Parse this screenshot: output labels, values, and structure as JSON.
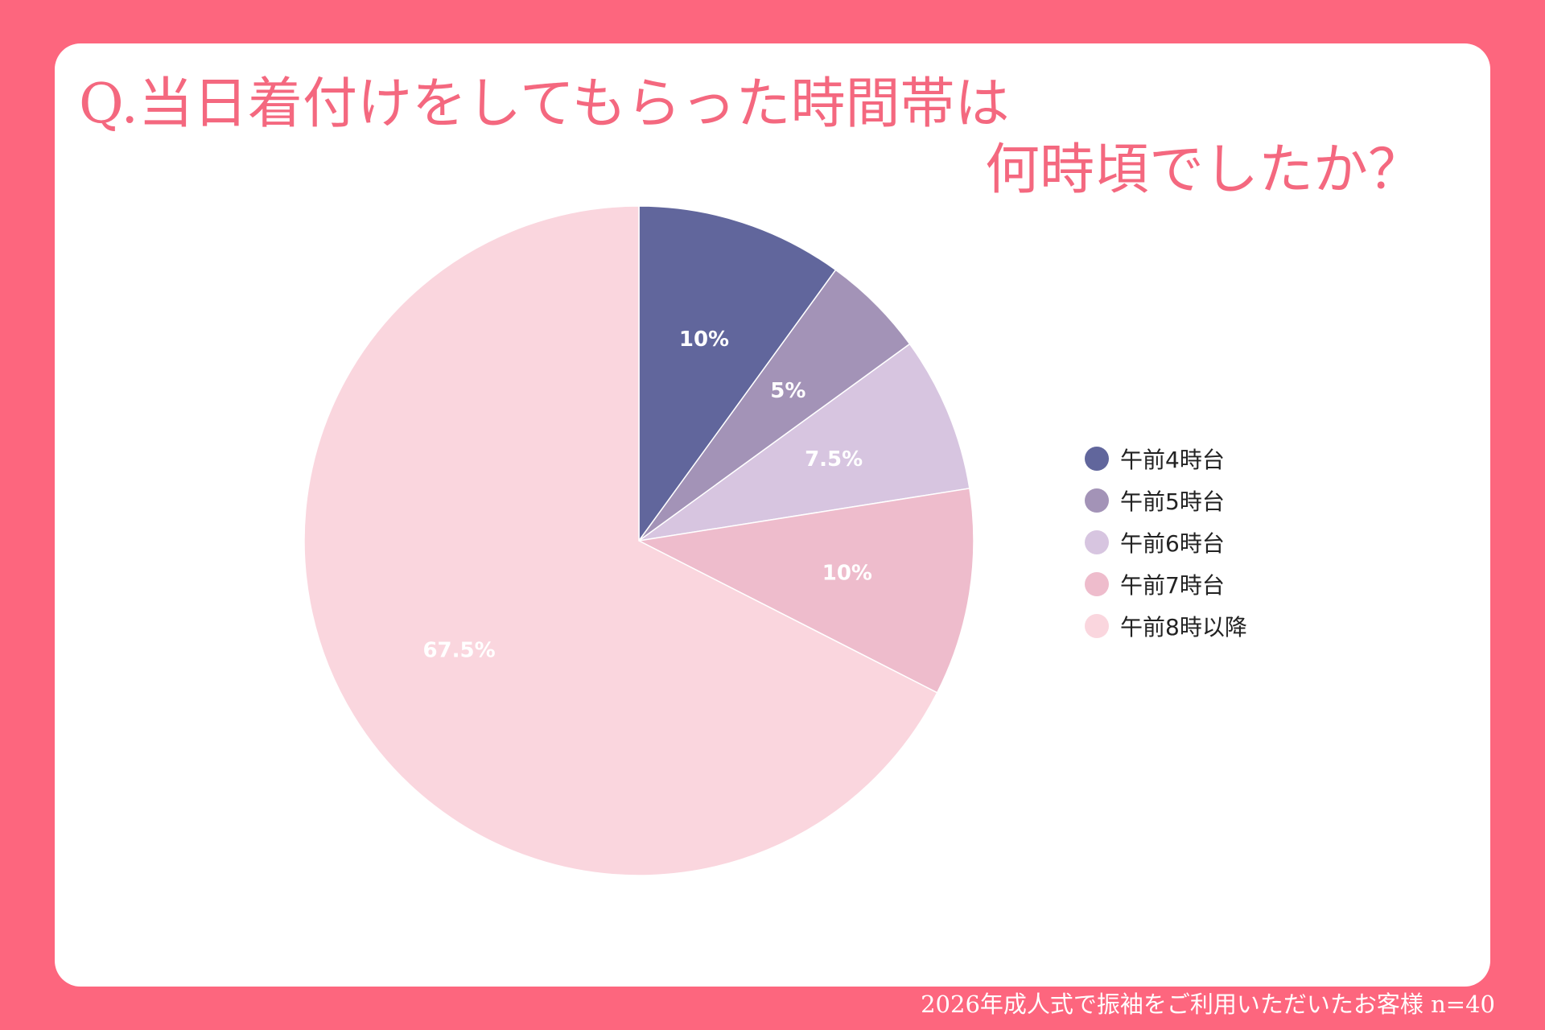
{
  "title": {
    "line1": "Q.当日着付けをしてもらった時間帯は",
    "line2": "何時頃でしたか？"
  },
  "footer": "2026年成人式で振袖をご利用いただいたお客様  n=40",
  "colors": {
    "frame": "#fd667e",
    "card": "#ffffff",
    "title": "#f4687f"
  },
  "chart_data": {
    "type": "pie",
    "unit": "%",
    "start_angle_deg": 0,
    "direction": "clockwise",
    "legend_position": "right",
    "slices": [
      {
        "name": "午前4時台",
        "value": 10,
        "label": "10%",
        "color": "#61669c"
      },
      {
        "name": "午前5時台",
        "value": 5,
        "label": "5%",
        "color": "#a393b7"
      },
      {
        "name": "午前6時台",
        "value": 7.5,
        "label": "7.5%",
        "color": "#d7c5e0"
      },
      {
        "name": "午前7時台",
        "value": 10,
        "label": "10%",
        "color": "#eebccc"
      },
      {
        "name": "午前8時以降",
        "value": 67.5,
        "label": "67.5%",
        "color": "#fad6de"
      }
    ]
  }
}
